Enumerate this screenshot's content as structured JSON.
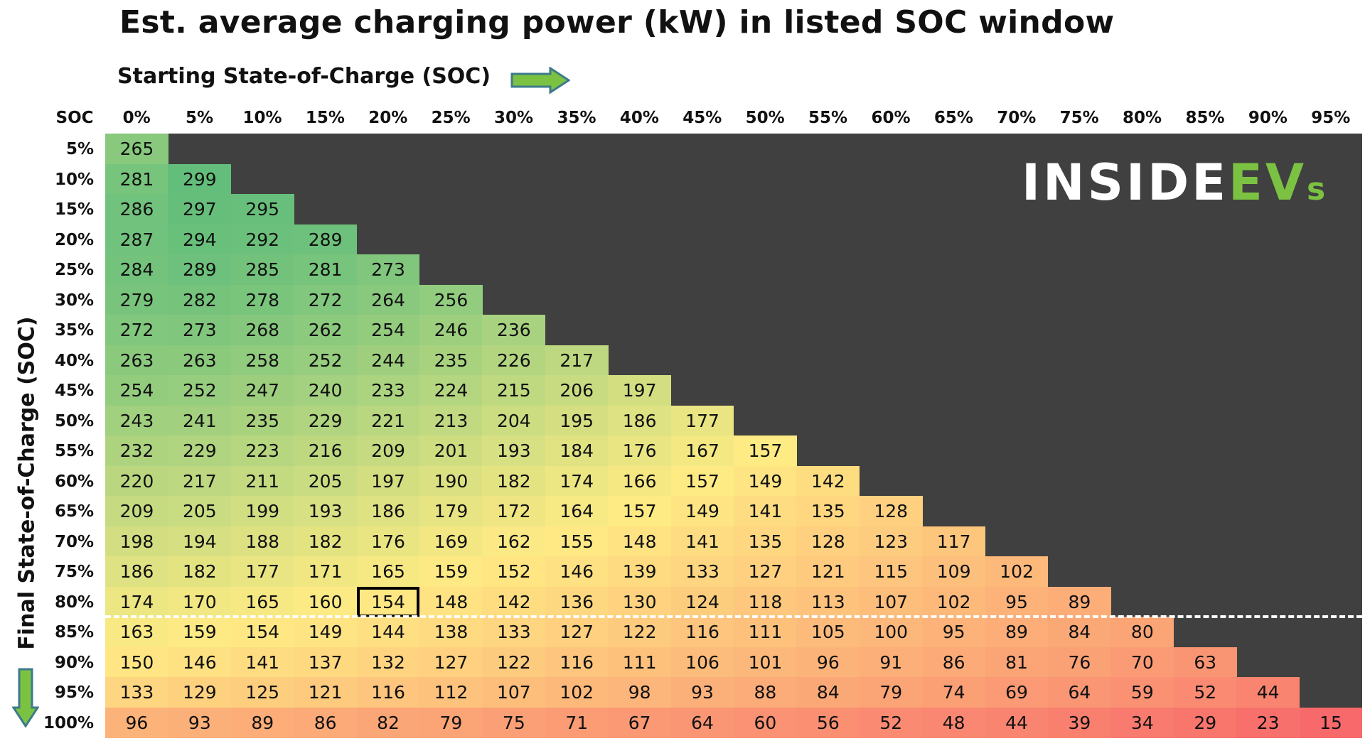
{
  "title": "Est. average charging power (kW) in listed SOC window",
  "x_axis_label": "Starting State-of-Charge (SOC)",
  "y_axis_label": "Final State-of-Charge (SOC)",
  "corner_label": "SOC",
  "logo": {
    "part1": "INSIDE",
    "part2": "EV",
    "part3": "s"
  },
  "colors": {
    "background": "#404040",
    "logo_white": "#ffffff",
    "logo_green": "#7cc242",
    "arrow_green": "#7cc242",
    "high": "#63be7b",
    "mid": "#ffeb84",
    "low": "#f8696b"
  },
  "chart_data": {
    "type": "heatmap",
    "title": "Est. average charging power (kW) in listed SOC window",
    "xlabel": "Starting State-of-Charge (SOC)",
    "ylabel": "Final State-of-Charge (SOC)",
    "x_categories": [
      "0%",
      "5%",
      "10%",
      "15%",
      "20%",
      "25%",
      "30%",
      "35%",
      "40%",
      "45%",
      "50%",
      "55%",
      "60%",
      "65%",
      "70%",
      "75%",
      "80%",
      "85%",
      "90%",
      "95%"
    ],
    "y_categories": [
      "5%",
      "10%",
      "15%",
      "20%",
      "25%",
      "30%",
      "35%",
      "40%",
      "45%",
      "50%",
      "55%",
      "60%",
      "65%",
      "70%",
      "75%",
      "80%",
      "85%",
      "90%",
      "95%",
      "100%"
    ],
    "values": [
      [
        265
      ],
      [
        281,
        299
      ],
      [
        286,
        297,
        295
      ],
      [
        287,
        294,
        292,
        289
      ],
      [
        284,
        289,
        285,
        281,
        273
      ],
      [
        279,
        282,
        278,
        272,
        264,
        256
      ],
      [
        272,
        273,
        268,
        262,
        254,
        246,
        236
      ],
      [
        263,
        263,
        258,
        252,
        244,
        235,
        226,
        217
      ],
      [
        254,
        252,
        247,
        240,
        233,
        224,
        215,
        206,
        197
      ],
      [
        243,
        241,
        235,
        229,
        221,
        213,
        204,
        195,
        186,
        177
      ],
      [
        232,
        229,
        223,
        216,
        209,
        201,
        193,
        184,
        176,
        167,
        157
      ],
      [
        220,
        217,
        211,
        205,
        197,
        190,
        182,
        174,
        166,
        157,
        149,
        142
      ],
      [
        209,
        205,
        199,
        193,
        186,
        179,
        172,
        164,
        157,
        149,
        141,
        135,
        128
      ],
      [
        198,
        194,
        188,
        182,
        176,
        169,
        162,
        155,
        148,
        141,
        135,
        128,
        123,
        117
      ],
      [
        186,
        182,
        177,
        171,
        165,
        159,
        152,
        146,
        139,
        133,
        127,
        121,
        115,
        109,
        102
      ],
      [
        174,
        170,
        165,
        160,
        154,
        148,
        142,
        136,
        130,
        124,
        118,
        113,
        107,
        102,
        95,
        89
      ],
      [
        163,
        159,
        154,
        149,
        144,
        138,
        133,
        127,
        122,
        116,
        111,
        105,
        100,
        95,
        89,
        84,
        80
      ],
      [
        150,
        146,
        141,
        137,
        132,
        127,
        122,
        116,
        111,
        106,
        101,
        96,
        91,
        86,
        81,
        76,
        70,
        63
      ],
      [
        133,
        129,
        125,
        121,
        116,
        112,
        107,
        102,
        98,
        93,
        88,
        84,
        79,
        74,
        69,
        64,
        59,
        52,
        44
      ],
      [
        96,
        93,
        89,
        86,
        82,
        79,
        75,
        71,
        67,
        64,
        60,
        56,
        52,
        48,
        44,
        39,
        34,
        29,
        23,
        15
      ]
    ],
    "highlighted_cell": {
      "start_soc": "20%",
      "final_soc": "80%",
      "value": 154
    },
    "cutoff_line_below_final_soc": "80%"
  }
}
